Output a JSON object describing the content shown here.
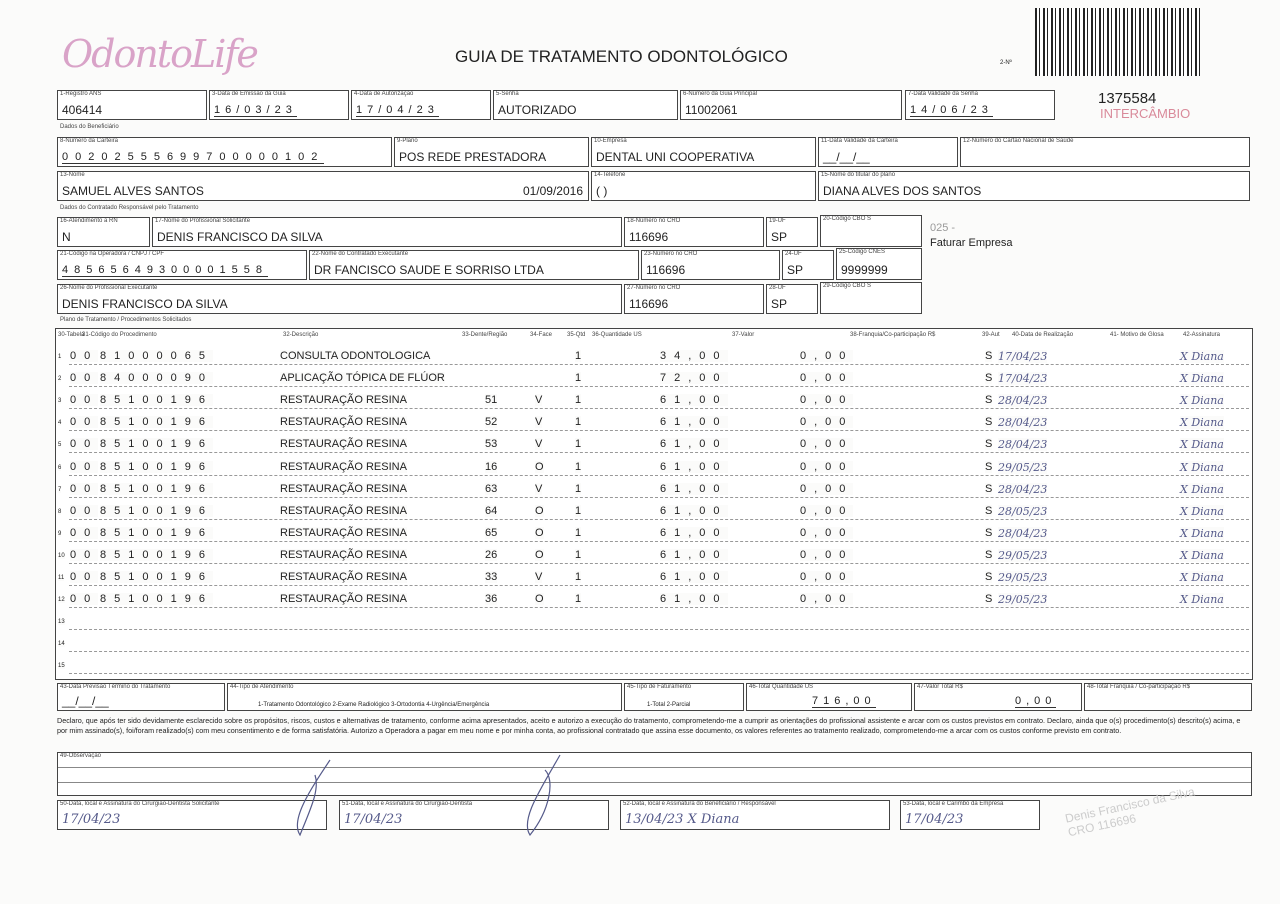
{
  "header": {
    "logo": "OdontoLife",
    "title": "GUIA DE TRATAMENTO ODONTOLÓGICO",
    "copy": "2-Nº",
    "guide_number": "1375584",
    "stamp": "INTERCÂMBIO"
  },
  "fields": {
    "registro_ans": {
      "label": "1-Registro ANS",
      "value": "406414"
    },
    "data_emissao": {
      "label": "3-Data de Emissão da Guia",
      "value": "16/03/23"
    },
    "data_autorizacao": {
      "label": "4-Data de Autorização",
      "value": "17/04/23"
    },
    "senha": {
      "label": "5-Senha",
      "value": "AUTORIZADO"
    },
    "guia_principal": {
      "label": "6-Número da Guia Principal",
      "value": "11002061"
    },
    "validade_senha": {
      "label": "7-Data Validade da Senha",
      "value": "14/06/23"
    },
    "sec_beneficiario": "Dados do Beneficiário",
    "carteira": {
      "label": "8-Número da Carteira",
      "value": "00202555699700000102"
    },
    "plano": {
      "label": "9-Plano",
      "value": "POS REDE PRESTADORA"
    },
    "empresa": {
      "label": "10-Empresa",
      "value": "DENTAL UNI  COOPERATIVA"
    },
    "validade_carteira": {
      "label": "11-Data Validade da Carteira",
      "value": "__/__/__"
    },
    "cns": {
      "label": "12-Número do Cartão Nacional de Saúde",
      "value": ""
    },
    "nome": {
      "label": "13-Nome",
      "value": "SAMUEL ALVES SANTOS",
      "date": "01/09/2016"
    },
    "telefone": {
      "label": "14-Telefone",
      "value": "(  )"
    },
    "titular": {
      "label": "15-Nome do titular do plano",
      "value": "DIANA ALVES DOS SANTOS"
    },
    "sec_solicitante": "Dados do Contratado Responsável pelo Tratamento",
    "rn": {
      "label": "16-Atendimento a RN",
      "value": "N"
    },
    "prof_solicitante": {
      "label": "17-Nome do Profissional Solicitante",
      "value": "DENIS FRANCISCO DA SILVA"
    },
    "cro1": {
      "label": "18-Número no CRO",
      "value": "116696"
    },
    "uf1": {
      "label": "19-UF",
      "value": "SP"
    },
    "cbo1": {
      "label": "20-Código CBO S",
      "value": ""
    },
    "note": {
      "code": "025 -",
      "text": "Faturar Empresa"
    },
    "cnpj": {
      "label": "21-Código na Operadora / CNPJ / CPF",
      "value": "48565649300001558"
    },
    "contratado": {
      "label": "22-Nome do Contratado Executante",
      "value": "DR FANCISCO SAUDE E SORRISO LTDA"
    },
    "cro2": {
      "label": "23-Número no CRO",
      "value": "116696"
    },
    "uf2": {
      "label": "24-UF",
      "value": "SP"
    },
    "cnes": {
      "label": "25-Código CNES",
      "value": "9999999"
    },
    "prof_executante": {
      "label": "26-Nome do Profissional Executante",
      "value": "DENIS FRANCISCO DA SILVA"
    },
    "cro3": {
      "label": "27-Número no CRO",
      "value": "116696"
    },
    "uf3": {
      "label": "28-UF",
      "value": "SP"
    },
    "cbo2": {
      "label": "29-Código CBO S",
      "value": ""
    }
  },
  "table": {
    "section": "Plano de Tratamento / Procedimentos Solicitados",
    "headers": {
      "tabela": "30-Tabela",
      "codigo": "31-Código do Procedimento",
      "descricao": "32-Descrição",
      "dente": "33-Dente/Região",
      "face": "34-Face",
      "qtd": "35-Qtd",
      "us": "36-Quantidade US",
      "valor": "37-Valor",
      "franquia": "38-Franquia/Co-participação R$",
      "aut": "39-Aut",
      "data": "40-Data de Realização",
      "motivo": "41- Motivo de Glosa",
      "assinatura": "42-Assinatura"
    },
    "rows": [
      {
        "n": "1",
        "tabela": "00",
        "codigo": "81000065",
        "descricao": "CONSULTA ODONTOLOGICA",
        "dente": "",
        "face": "",
        "qtd": "1",
        "us": "34,00",
        "valor": "0,00",
        "aut": "S",
        "data": "17/04/23",
        "assinatura": "X Diana"
      },
      {
        "n": "2",
        "tabela": "00",
        "codigo": "84000090",
        "descricao": "APLICAÇÃO TÓPICA DE FLÚOR",
        "dente": "",
        "face": "",
        "qtd": "1",
        "us": "72,00",
        "valor": "0,00",
        "aut": "S",
        "data": "17/04/23",
        "assinatura": "X Diana"
      },
      {
        "n": "3",
        "tabela": "00",
        "codigo": "85100196",
        "descricao": "RESTAURAÇÃO RESINA",
        "dente": "51",
        "face": "V",
        "qtd": "1",
        "us": "61,00",
        "valor": "0,00",
        "aut": "S",
        "data": "28/04/23",
        "assinatura": "X Diana"
      },
      {
        "n": "4",
        "tabela": "00",
        "codigo": "85100196",
        "descricao": "RESTAURAÇÃO RESINA",
        "dente": "52",
        "face": "V",
        "qtd": "1",
        "us": "61,00",
        "valor": "0,00",
        "aut": "S",
        "data": "28/04/23",
        "assinatura": "X Diana"
      },
      {
        "n": "5",
        "tabela": "00",
        "codigo": "85100196",
        "descricao": "RESTAURAÇÃO RESINA",
        "dente": "53",
        "face": "V",
        "qtd": "1",
        "us": "61,00",
        "valor": "0,00",
        "aut": "S",
        "data": "28/04/23",
        "assinatura": "X Diana"
      },
      {
        "n": "6",
        "tabela": "00",
        "codigo": "85100196",
        "descricao": "RESTAURAÇÃO RESINA",
        "dente": "16",
        "face": "O",
        "qtd": "1",
        "us": "61,00",
        "valor": "0,00",
        "aut": "S",
        "data": "29/05/23",
        "assinatura": "X Diana"
      },
      {
        "n": "7",
        "tabela": "00",
        "codigo": "85100196",
        "descricao": "RESTAURAÇÃO RESINA",
        "dente": "63",
        "face": "V",
        "qtd": "1",
        "us": "61,00",
        "valor": "0,00",
        "aut": "S",
        "data": "28/04/23",
        "assinatura": "X Diana"
      },
      {
        "n": "8",
        "tabela": "00",
        "codigo": "85100196",
        "descricao": "RESTAURAÇÃO RESINA",
        "dente": "64",
        "face": "O",
        "qtd": "1",
        "us": "61,00",
        "valor": "0,00",
        "aut": "S",
        "data": "28/05/23",
        "assinatura": "X Diana"
      },
      {
        "n": "9",
        "tabela": "00",
        "codigo": "85100196",
        "descricao": "RESTAURAÇÃO RESINA",
        "dente": "65",
        "face": "O",
        "qtd": "1",
        "us": "61,00",
        "valor": "0,00",
        "aut": "S",
        "data": "28/04/23",
        "assinatura": "X Diana"
      },
      {
        "n": "10",
        "tabela": "00",
        "codigo": "85100196",
        "descricao": "RESTAURAÇÃO RESINA",
        "dente": "26",
        "face": "O",
        "qtd": "1",
        "us": "61,00",
        "valor": "0,00",
        "aut": "S",
        "data": "29/05/23",
        "assinatura": "X Diana"
      },
      {
        "n": "11",
        "tabela": "00",
        "codigo": "85100196",
        "descricao": "RESTAURAÇÃO RESINA",
        "dente": "33",
        "face": "V",
        "qtd": "1",
        "us": "61,00",
        "valor": "0,00",
        "aut": "S",
        "data": "29/05/23",
        "assinatura": "X Diana"
      },
      {
        "n": "12",
        "tabela": "00",
        "codigo": "85100196",
        "descricao": "RESTAURAÇÃO RESINA",
        "dente": "36",
        "face": "O",
        "qtd": "1",
        "us": "61,00",
        "valor": "0,00",
        "aut": "S",
        "data": "29/05/23",
        "assinatura": "X Diana"
      },
      {
        "n": "13"
      },
      {
        "n": "14"
      },
      {
        "n": "15"
      }
    ]
  },
  "footer": {
    "previsao": {
      "label": "43-Data Previsão Término do Tratamento",
      "value": "__/__/__"
    },
    "tipo_atendimento": {
      "label": "44-Tipo de Atendimento",
      "options": "1-Tratamento Odontológico  2-Exame Radiológico  3-Ortodontia  4-Urgência/Emergência"
    },
    "tipo_faturamento": {
      "label": "45-Tipo de Faturamento",
      "options": "1-Total  2-Parcial"
    },
    "total_us": {
      "label": "46-Total Quantidade US",
      "value": "716,00"
    },
    "valor_total": {
      "label": "47-Valor Total R$",
      "value": "0,00"
    },
    "total_franquia": {
      "label": "48-Total Franquia / Co-participação R$",
      "value": ""
    },
    "declaration": "Declaro, que após ter sido devidamente esclarecido sobre os propósitos, riscos, custos e alternativas de tratamento, conforme acima apresentados, aceito e autorizo a execução do tratamento, comprometendo-me a cumprir as orientações do profissional assistente e arcar com os custos previstos em contrato. Declaro, ainda que o(s) procedimento(s) descrito(s) acima, e por mim assinado(s), foi/foram realizado(s) com meu consentimento e de forma satisfatória. Autorizo a Operadora a pagar em meu nome e por minha conta, ao profissional contratado que assina esse documento, os valores referentes ao tratamento realizado, comprometendo-me a arcar com os custos conforme previsto em contrato.",
    "observacao": {
      "label": "49-Observação",
      "value": ""
    },
    "sig50": {
      "label": "50-Data, local e Assinatura do Cirurgião-Dentista Solicitante",
      "value": "17/04/23"
    },
    "sig51": {
      "label": "51-Data, local e Assinatura do Cirurgião-Dentista",
      "value": "17/04/23"
    },
    "sig52": {
      "label": "52-Data, local e Assinatura do Beneficiário / Responsável",
      "value": "13/04/23 X Diana"
    },
    "sig53": {
      "label": "53-Data, local e Carimbo da Empresa",
      "value": "17/04/23"
    },
    "stamp": "Denis Francisco da Silva CRO 116696"
  }
}
